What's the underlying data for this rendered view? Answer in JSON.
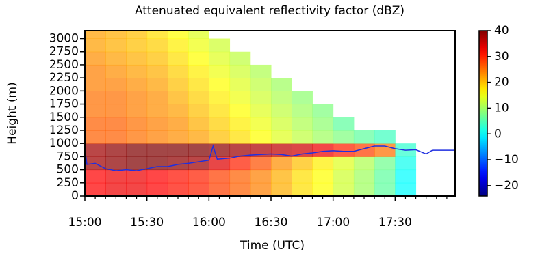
{
  "chart_data": {
    "type": "heatmap",
    "title": "Attenuated equivalent reflectivity factor (dBZ)",
    "xlabel": "Time (UTC)",
    "ylabel": "Height (m)",
    "xlim": [
      0,
      179
    ],
    "ylim": [
      0,
      3150
    ],
    "xticks": [
      {
        "value": 0,
        "label": "15:00"
      },
      {
        "value": 30,
        "label": "15:30"
      },
      {
        "value": 60,
        "label": "16:00"
      },
      {
        "value": 90,
        "label": "16:30"
      },
      {
        "value": 120,
        "label": "17:00"
      },
      {
        "value": 150,
        "label": "17:30"
      }
    ],
    "xminorticks": [
      5,
      10,
      15,
      20,
      25,
      35,
      40,
      45,
      50,
      55,
      65,
      70,
      75,
      80,
      85,
      95,
      100,
      105,
      110,
      115,
      125,
      130,
      135,
      140,
      145,
      155,
      160,
      165,
      170,
      175
    ],
    "yticks": [
      0,
      250,
      500,
      750,
      1000,
      1250,
      1500,
      1750,
      2000,
      2250,
      2500,
      2750,
      3000
    ],
    "x_edges": [
      0,
      10,
      20,
      30,
      40,
      50,
      60,
      70,
      80,
      90,
      100,
      110,
      120,
      130,
      140,
      150,
      160
    ],
    "y_edges": [
      0,
      250,
      500,
      750,
      1000,
      1250,
      1500,
      1750,
      2000,
      2250,
      2500,
      2750,
      3000,
      3150
    ],
    "z": [
      [
        32,
        33,
        33,
        32,
        31,
        30,
        28,
        26,
        24,
        21,
        18,
        16,
        13,
        10,
        6,
        0
      ],
      [
        32,
        33,
        33,
        32,
        31,
        30,
        28,
        26,
        24,
        21,
        18,
        16,
        13,
        10,
        6,
        0
      ],
      [
        38,
        39,
        40,
        40,
        39,
        38,
        34,
        30,
        27,
        23,
        20,
        17,
        14,
        11,
        7,
        1
      ],
      [
        38,
        39,
        40,
        40,
        40,
        40,
        39,
        38,
        37,
        36,
        35,
        33,
        30,
        28,
        25,
        3
      ],
      [
        26,
        26,
        25,
        24,
        23,
        22,
        20,
        18,
        16,
        14,
        12,
        10,
        8,
        6,
        4,
        null
      ],
      [
        26,
        26,
        25,
        24,
        23,
        21,
        19,
        17,
        15,
        13,
        11,
        9,
        6,
        null,
        null,
        null
      ],
      [
        25,
        25,
        24,
        23,
        22,
        20,
        18,
        16,
        14,
        12,
        10,
        8,
        null,
        null,
        null,
        null
      ],
      [
        25,
        25,
        24,
        23,
        21,
        19,
        17,
        15,
        13,
        11,
        9,
        null,
        null,
        null,
        null,
        null
      ],
      [
        24,
        24,
        23,
        22,
        20,
        18,
        16,
        14,
        12,
        10,
        null,
        null,
        null,
        null,
        null,
        null
      ],
      [
        24,
        23,
        22,
        21,
        19,
        17,
        15,
        13,
        11,
        null,
        null,
        null,
        null,
        null,
        null,
        null
      ],
      [
        23,
        22,
        21,
        20,
        18,
        16,
        14,
        12,
        null,
        null,
        null,
        null,
        null,
        null,
        null,
        null
      ],
      [
        22,
        21,
        20,
        19,
        17,
        15,
        13,
        null,
        null,
        null,
        null,
        null,
        null,
        null,
        null,
        null
      ],
      [
        22,
        21,
        20,
        18,
        16,
        14,
        null,
        null,
        null,
        null,
        null,
        null,
        null,
        null,
        null,
        null
      ]
    ],
    "clim": [
      -24,
      40
    ],
    "cticks": [
      {
        "value": -20,
        "label": "−20"
      },
      {
        "value": -10,
        "label": "−10"
      },
      0,
      10,
      20,
      30,
      40
    ],
    "overlay": {
      "color": "#1f2fe0",
      "x": [
        0,
        1,
        5,
        10,
        15,
        20,
        25,
        30,
        35,
        40,
        45,
        50,
        55,
        60,
        62,
        64,
        70,
        75,
        80,
        90,
        95,
        100,
        105,
        110,
        115,
        120,
        125,
        130,
        135,
        140,
        145,
        150,
        155,
        160,
        165,
        168,
        179
      ],
      "values": [
        900,
        600,
        620,
        520,
        480,
        500,
        480,
        520,
        560,
        560,
        600,
        620,
        650,
        680,
        950,
        700,
        720,
        760,
        780,
        800,
        790,
        760,
        800,
        820,
        850,
        860,
        850,
        850,
        900,
        950,
        950,
        900,
        870,
        880,
        800,
        870,
        870
      ]
    }
  }
}
